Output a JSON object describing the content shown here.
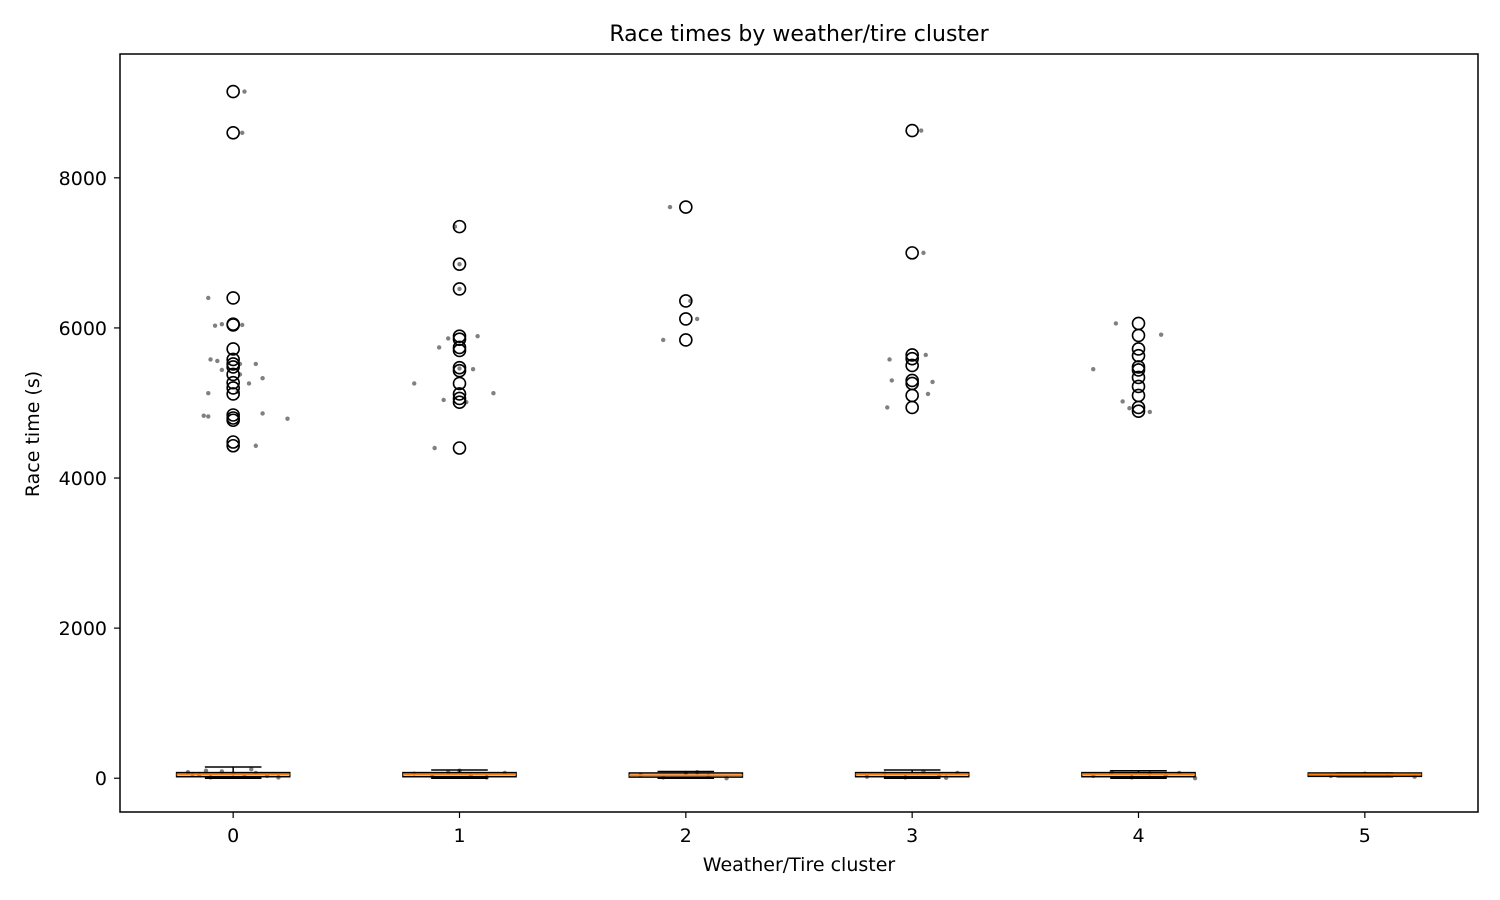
{
  "chart_data": {
    "type": "box",
    "title": "Race times by weather/tire cluster",
    "xlabel": "Weather/Tire cluster",
    "ylabel": "Race time (s)",
    "categories": [
      "0",
      "1",
      "2",
      "3",
      "4",
      "5"
    ],
    "ylim": [
      -450,
      9650
    ],
    "yticks": [
      0,
      2000,
      4000,
      6000,
      8000
    ],
    "grid": false,
    "colors": {
      "median": "#ff7f0e",
      "box": "#000000",
      "points": "#555555"
    },
    "boxes": [
      {
        "category": "0",
        "whislo": 0,
        "q1": 20,
        "median": 50,
        "q3": 75,
        "whishi": 150,
        "fliers": [
          9150,
          8600,
          6400,
          6050,
          6040,
          5720,
          5580,
          5520,
          5480,
          5380,
          5270,
          5200,
          5120,
          4840,
          4800,
          4770,
          4480,
          4430
        ]
      },
      {
        "category": "1",
        "whislo": 0,
        "q1": 20,
        "median": 50,
        "q3": 75,
        "whishi": 110,
        "fliers": [
          7350,
          6850,
          6520,
          5890,
          5850,
          5740,
          5700,
          5470,
          5430,
          5260,
          5120,
          5060,
          5010,
          4400
        ]
      },
      {
        "category": "2",
        "whislo": 0,
        "q1": 15,
        "median": 40,
        "q3": 70,
        "whishi": 90,
        "fliers": [
          7610,
          6360,
          6120,
          5840
        ]
      },
      {
        "category": "3",
        "whislo": 0,
        "q1": 20,
        "median": 50,
        "q3": 75,
        "whishi": 110,
        "fliers": [
          8630,
          7000,
          5640,
          5590,
          5500,
          5300,
          5260,
          5100,
          4940
        ]
      },
      {
        "category": "4",
        "whislo": 0,
        "q1": 20,
        "median": 50,
        "q3": 75,
        "whishi": 100,
        "fliers": [
          6060,
          5900,
          5720,
          5630,
          5480,
          5440,
          5340,
          5220,
          5100,
          4940,
          4890
        ]
      },
      {
        "category": "5",
        "whislo": 20,
        "q1": 25,
        "median": 50,
        "q3": 70,
        "whishi": 70,
        "fliers": []
      }
    ],
    "scatter_points": [
      {
        "category": "0",
        "points": [
          [
            -0.11,
            6400
          ],
          [
            -0.08,
            6030
          ],
          [
            -0.05,
            6050
          ],
          [
            -0.07,
            5560
          ],
          [
            -0.1,
            5580
          ],
          [
            0.03,
            5520
          ],
          [
            0.1,
            5520
          ],
          [
            -0.05,
            5440
          ],
          [
            0.03,
            5380
          ],
          [
            0.13,
            5330
          ],
          [
            0.07,
            5260
          ],
          [
            -0.11,
            5130
          ],
          [
            0.02,
            5150
          ],
          [
            -0.13,
            4830
          ],
          [
            -0.11,
            4820
          ],
          [
            0.13,
            4860
          ],
          [
            0.24,
            4790
          ],
          [
            0.1,
            4430
          ],
          [
            0.05,
            9150
          ],
          [
            0.04,
            8600
          ],
          [
            0.04,
            6040
          ],
          [
            -0.2,
            80
          ],
          [
            -0.15,
            40
          ],
          [
            -0.1,
            10
          ],
          [
            -0.05,
            90
          ],
          [
            0.0,
            60
          ],
          [
            0.05,
            20
          ],
          [
            0.1,
            70
          ],
          [
            0.15,
            30
          ],
          [
            0.2,
            10
          ],
          [
            -0.12,
            100
          ],
          [
            0.08,
            120
          ],
          [
            -0.18,
            50
          ]
        ]
      },
      {
        "category": "1",
        "points": [
          [
            -0.2,
            5260
          ],
          [
            -0.09,
            5740
          ],
          [
            -0.05,
            5860
          ],
          [
            -0.07,
            5040
          ],
          [
            0.0,
            6850
          ],
          [
            0.0,
            6520
          ],
          [
            0.0,
            5460
          ],
          [
            -0.02,
            7350
          ],
          [
            0.06,
            5450
          ],
          [
            0.08,
            5890
          ],
          [
            0.15,
            5130
          ],
          [
            -0.11,
            4400
          ],
          [
            0.03,
            5010
          ],
          [
            -0.2,
            60
          ],
          [
            -0.12,
            20
          ],
          [
            -0.05,
            80
          ],
          [
            0.05,
            40
          ],
          [
            0.12,
            10
          ],
          [
            0.2,
            70
          ],
          [
            0.0,
            100
          ]
        ]
      },
      {
        "category": "2",
        "points": [
          [
            -0.07,
            7610
          ],
          [
            -0.1,
            5840
          ],
          [
            0.02,
            6360
          ],
          [
            0.05,
            6120
          ],
          [
            -0.2,
            40
          ],
          [
            -0.1,
            10
          ],
          [
            0.0,
            70
          ],
          [
            0.1,
            30
          ],
          [
            0.18,
            0
          ],
          [
            0.05,
            80
          ]
        ]
      },
      {
        "category": "3",
        "points": [
          [
            0.04,
            8630
          ],
          [
            0.05,
            7000
          ],
          [
            -0.1,
            5580
          ],
          [
            0.06,
            5640
          ],
          [
            -0.09,
            5300
          ],
          [
            0.09,
            5280
          ],
          [
            0.07,
            5120
          ],
          [
            -0.11,
            4940
          ],
          [
            -0.2,
            20
          ],
          [
            -0.12,
            60
          ],
          [
            -0.03,
            10
          ],
          [
            0.05,
            90
          ],
          [
            0.12,
            40
          ],
          [
            0.2,
            70
          ],
          [
            0.15,
            5
          ]
        ]
      },
      {
        "category": "4",
        "points": [
          [
            -0.2,
            5450
          ],
          [
            -0.1,
            6060
          ],
          [
            0.1,
            5910
          ],
          [
            -0.04,
            4930
          ],
          [
            0.05,
            4880
          ],
          [
            -0.07,
            5020
          ],
          [
            -0.2,
            30
          ],
          [
            -0.12,
            80
          ],
          [
            -0.03,
            10
          ],
          [
            0.05,
            60
          ],
          [
            0.12,
            40
          ],
          [
            0.25,
            0
          ],
          [
            0.18,
            70
          ]
        ]
      },
      {
        "category": "5",
        "points": [
          [
            -0.15,
            30
          ],
          [
            0.0,
            60
          ],
          [
            0.1,
            50
          ],
          [
            0.22,
            20
          ]
        ]
      }
    ]
  }
}
